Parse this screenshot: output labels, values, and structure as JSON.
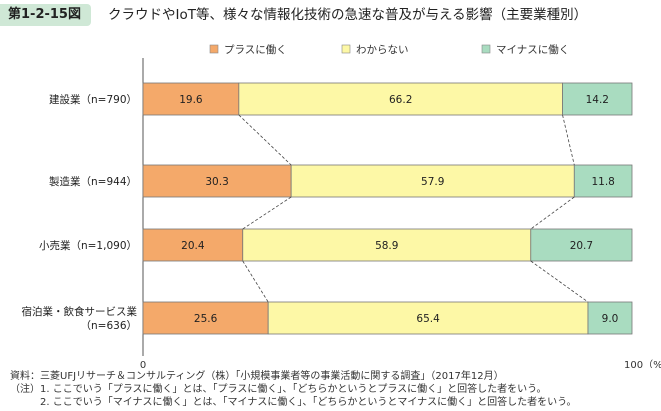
{
  "figure": {
    "number": "第1-2-15図",
    "title": "クラウドやIoT等、様々な情報化技術の急速な普及が与える影響（主要業種別）"
  },
  "chart_data": {
    "type": "bar",
    "orientation": "horizontal",
    "stacked": true,
    "categories": [
      "建設業（n=790）",
      "製造業（n=944）",
      "小売業（n=1,090）",
      "宿泊業・飲食サービス業（n=636）"
    ],
    "category_lines": [
      [
        "建設業（n=790）"
      ],
      [
        "製造業（n=944）"
      ],
      [
        "小売業（n=1,090）"
      ],
      [
        "宿泊業・飲食サービス業",
        "（n=636）"
      ]
    ],
    "series": [
      {
        "name": "プラスに働く",
        "values": [
          19.6,
          30.3,
          20.4,
          25.6
        ],
        "color": "#f4a96a"
      },
      {
        "name": "わからない",
        "values": [
          66.2,
          57.9,
          58.9,
          65.4
        ],
        "color": "#fdf8a6"
      },
      {
        "name": "マイナスに働く",
        "values": [
          14.2,
          11.8,
          20.7,
          9.0
        ],
        "color": "#a9dcc0"
      }
    ],
    "value_labels": [
      [
        "19.6",
        "66.2",
        "14.2"
      ],
      [
        "30.3",
        "57.9",
        "11.8"
      ],
      [
        "20.4",
        "58.9",
        "20.7"
      ],
      [
        "25.6",
        "65.4",
        "9.0"
      ]
    ],
    "xlim": [
      0,
      100
    ],
    "x_tick_labels": [
      "0",
      "100（%）"
    ],
    "connector_lines": true,
    "legend_position": "top"
  },
  "notes": [
    "資料：三菱UFJリサーチ＆コンサルティング（株）「小規模事業者等の事業活動に関する調査」（2017年12月）",
    "（注）1. ここでいう「プラスに働く」とは、「プラスに働く」、「どちらかというとプラスに働く」と回答した者をいう。",
    "　　　2. ここでいう「マイナスに働く」とは、「マイナスに働く」、「どちらかというとマイナスに働く」と回答した者をいう。"
  ]
}
